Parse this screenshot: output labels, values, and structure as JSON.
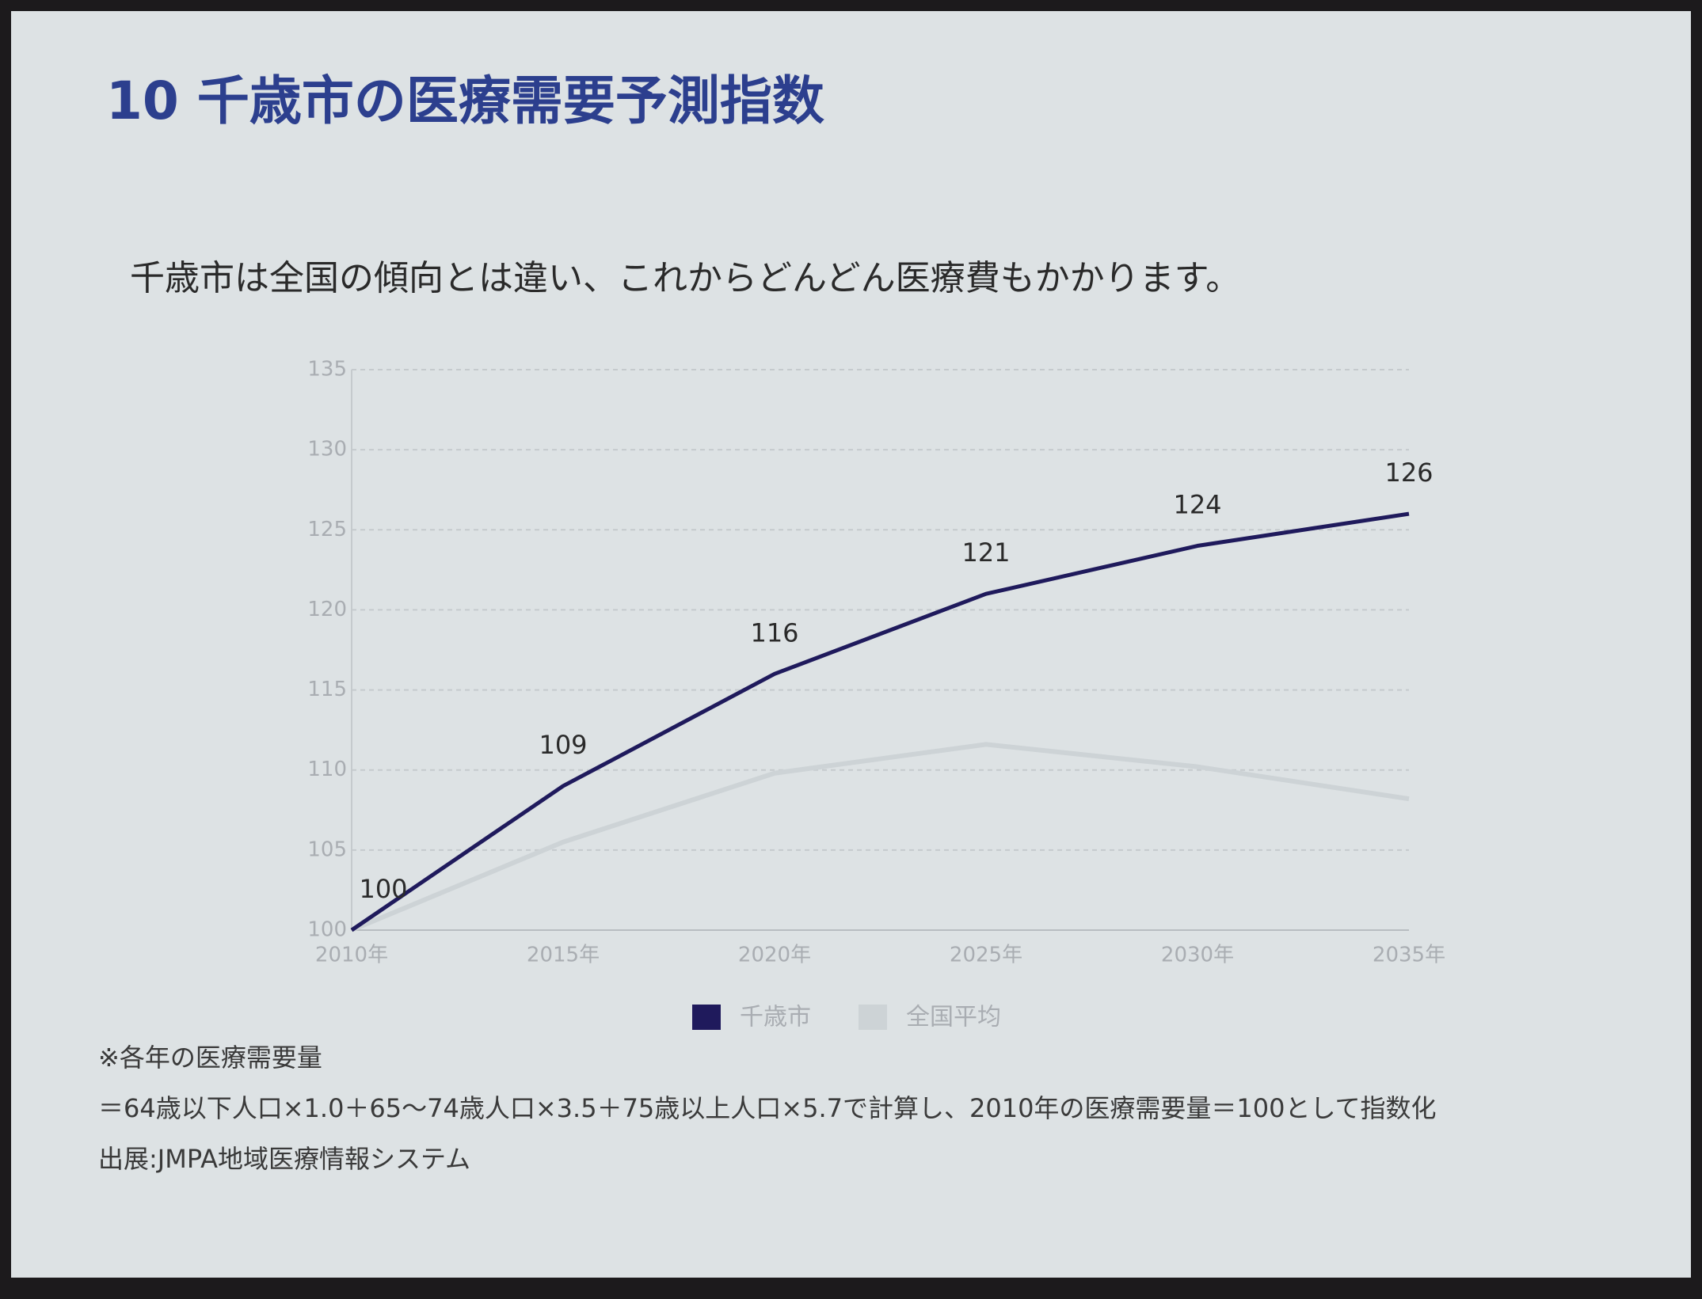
{
  "chart_data": {
    "type": "line",
    "title": "10 千歳市の医療需要予測指数",
    "subtitle": "千歳市は全国の傾向とは違い、これからどんどん医療費もかかります。",
    "categories": [
      "2010年",
      "2015年",
      "2020年",
      "2025年",
      "2030年",
      "2035年"
    ],
    "series": [
      {
        "name": "千歳市",
        "color": "#1f1a5c",
        "values": [
          100,
          109,
          116,
          121,
          124,
          126
        ]
      },
      {
        "name": "全国平均",
        "color": "#cdd3d6",
        "values": [
          100,
          105.5,
          109.8,
          111.6,
          110.2,
          108.2
        ]
      }
    ],
    "ylim": [
      100,
      135
    ],
    "yticks": [
      100,
      105,
      110,
      115,
      120,
      125,
      130,
      135
    ],
    "grid": true,
    "footnotes": [
      "※各年の医療需要量",
      "＝64歳以下人口×1.0＋65〜74歳人口×3.5＋75歳以上人口×5.7で計算し、2010年の医療需要量＝100として指数化",
      "出展:JMPA地域医療情報システム"
    ]
  }
}
